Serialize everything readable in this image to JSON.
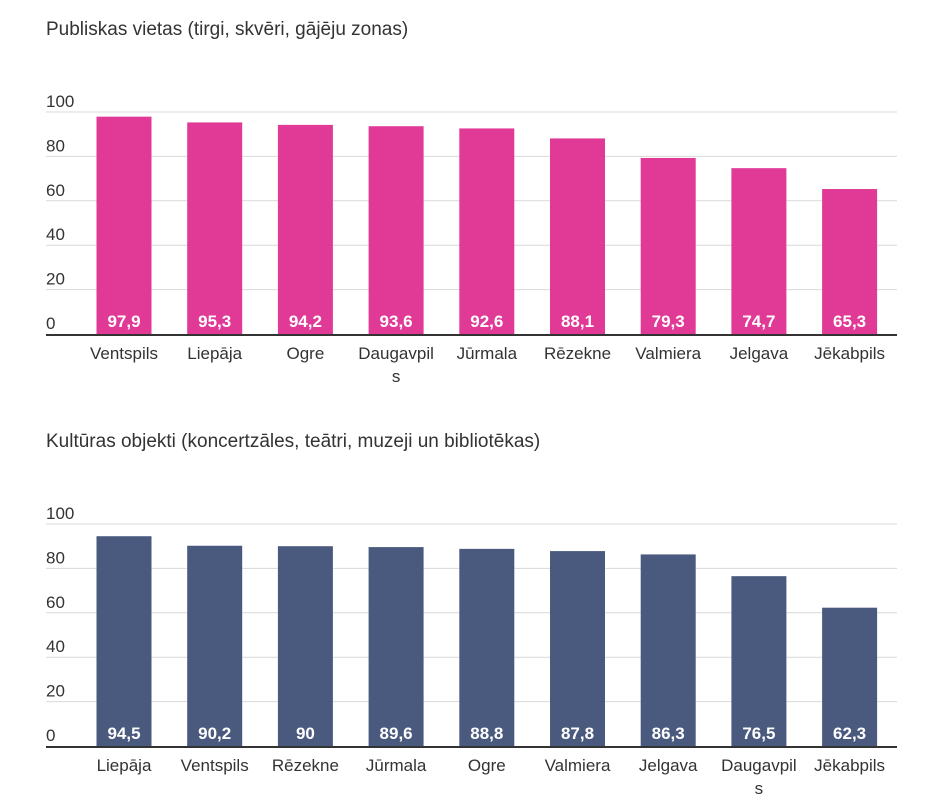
{
  "chart_data": [
    {
      "type": "bar",
      "title": "Publiskas vietas (tirgi, skvēri, gājēju zonas)",
      "categories": [
        "Ventspils",
        "Liepāja",
        "Ogre",
        "Daugavpils",
        "Jūrmala",
        "Rēzekne",
        "Valmiera",
        "Jelgava",
        "Jēkabpils"
      ],
      "values": [
        97.9,
        95.3,
        94.2,
        93.6,
        92.6,
        88.1,
        79.3,
        74.7,
        65.3
      ],
      "value_labels": [
        "97,9",
        "95,3",
        "94,2",
        "93,6",
        "92,6",
        "88,1",
        "79,3",
        "74,7",
        "65,3"
      ],
      "yticks": [
        "0",
        "20",
        "40",
        "60",
        "80",
        "100"
      ],
      "ylim": [
        0,
        100
      ],
      "xlabel": "",
      "ylabel": "",
      "grid": true,
      "legend": "none",
      "color": "#e03a96"
    },
    {
      "type": "bar",
      "title": "Kultūras objekti (koncertzāles, teātri, muzeji un bibliotēkas)",
      "categories": [
        "Liepāja",
        "Ventspils",
        "Rēzekne",
        "Jūrmala",
        "Ogre",
        "Valmiera",
        "Jelgava",
        "Daugavpils",
        "Jēkabpils"
      ],
      "values": [
        94.5,
        90.2,
        90,
        89.6,
        88.8,
        87.8,
        86.3,
        76.5,
        62.3
      ],
      "value_labels": [
        "94,5",
        "90,2",
        "90",
        "89,6",
        "88,8",
        "87,8",
        "86,3",
        "76,5",
        "62,3"
      ],
      "yticks": [
        "0",
        "20",
        "40",
        "60",
        "80",
        "100"
      ],
      "ylim": [
        0,
        100
      ],
      "xlabel": "",
      "ylabel": "",
      "grid": true,
      "legend": "none",
      "color": "#4a5a7e"
    }
  ]
}
